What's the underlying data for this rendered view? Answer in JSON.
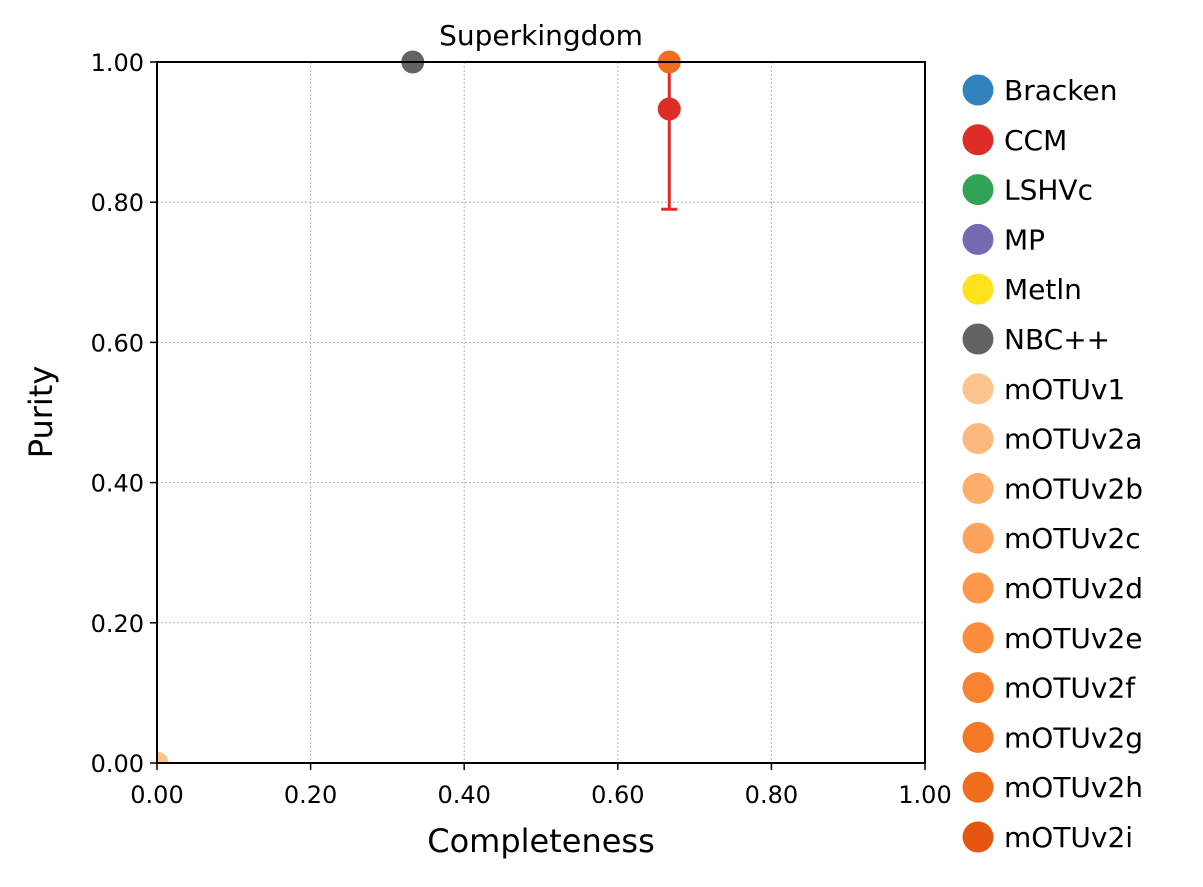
{
  "chart_data": {
    "type": "scatter",
    "title": "Superkingdom",
    "xlabel": "Completeness",
    "ylabel": "Purity",
    "xlim": [
      0,
      1
    ],
    "ylim": [
      0,
      1
    ],
    "xticks": [
      "0.00",
      "0.20",
      "0.40",
      "0.60",
      "0.80",
      "1.00"
    ],
    "yticks": [
      "0.00",
      "0.20",
      "0.40",
      "0.60",
      "0.80",
      "1.00"
    ],
    "grid": true,
    "legend_position": "right-outside",
    "series": [
      {
        "name": "Bracken",
        "color": "#3182bd",
        "points": []
      },
      {
        "name": "CCM",
        "color": "#de2d26",
        "points": [
          {
            "x": 0.667,
            "y": 0.933,
            "yerr_low": 0.79,
            "yerr_high": 1.0
          }
        ]
      },
      {
        "name": "LSHVc",
        "color": "#31a354",
        "points": []
      },
      {
        "name": "MP",
        "color": "#756bb1",
        "points": []
      },
      {
        "name": "Metln",
        "color": "#fee21b",
        "points": []
      },
      {
        "name": "NBC++",
        "color": "#636363",
        "points": [
          {
            "x": 0.333,
            "y": 1.0
          }
        ]
      },
      {
        "name": "mOTUv1",
        "color": "#fdc38d",
        "points": [
          {
            "x": 0.0,
            "y": 0.0
          }
        ]
      },
      {
        "name": "mOTUv2a",
        "color": "#fdb97d",
        "points": []
      },
      {
        "name": "mOTUv2b",
        "color": "#fdae6b",
        "points": []
      },
      {
        "name": "mOTUv2c",
        "color": "#fda35c",
        "points": []
      },
      {
        "name": "mOTUv2d",
        "color": "#fd984d",
        "points": []
      },
      {
        "name": "mOTUv2e",
        "color": "#fd8d3c",
        "points": []
      },
      {
        "name": "mOTUv2f",
        "color": "#f98331",
        "points": []
      },
      {
        "name": "mOTUv2g",
        "color": "#f57827",
        "points": []
      },
      {
        "name": "mOTUv2h",
        "color": "#f06d1d",
        "points": [
          {
            "x": 0.667,
            "y": 1.0
          }
        ]
      },
      {
        "name": "mOTUv2i",
        "color": "#e6550d",
        "points": []
      }
    ]
  }
}
